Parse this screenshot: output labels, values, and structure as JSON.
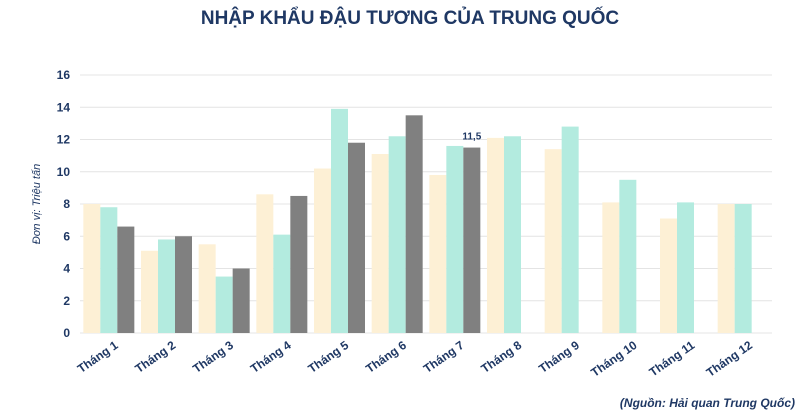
{
  "chart_data": {
    "type": "bar",
    "title": "NHẬP KHẨU ĐẬU TƯƠNG CỦA TRUNG QUỐC",
    "y_label": "Đơn vị: Triệu tấn",
    "source": "(Nguồn: Hải quan Trung Quốc)",
    "categories": [
      "Tháng 1",
      "Tháng 2",
      "Tháng 3",
      "Tháng 4",
      "Tháng 5",
      "Tháng 6",
      "Tháng 7",
      "Tháng 8",
      "Tháng 9",
      "Tháng 10",
      "Tháng 11",
      "Tháng 12"
    ],
    "series": [
      {
        "color": "#fdf0d5",
        "values": [
          8.0,
          5.1,
          5.5,
          8.6,
          10.2,
          11.1,
          9.8,
          12.1,
          11.4,
          8.1,
          7.1,
          8.0
        ]
      },
      {
        "color": "#b3ebdf",
        "values": [
          7.8,
          5.8,
          3.5,
          6.1,
          13.9,
          12.2,
          11.6,
          12.2,
          12.8,
          9.5,
          8.1,
          8.0
        ]
      },
      {
        "color": "#808080",
        "values": [
          6.6,
          6.0,
          4.0,
          8.5,
          11.8,
          13.5,
          11.5,
          null,
          null,
          null,
          null,
          null
        ],
        "value_labels": [
          null,
          null,
          null,
          null,
          null,
          null,
          "11,5",
          null,
          null,
          null,
          null,
          null
        ]
      }
    ],
    "ylim": [
      0,
      16
    ],
    "yticks": [
      0,
      2,
      4,
      6,
      8,
      10,
      12,
      14,
      16
    ],
    "grid": true
  }
}
